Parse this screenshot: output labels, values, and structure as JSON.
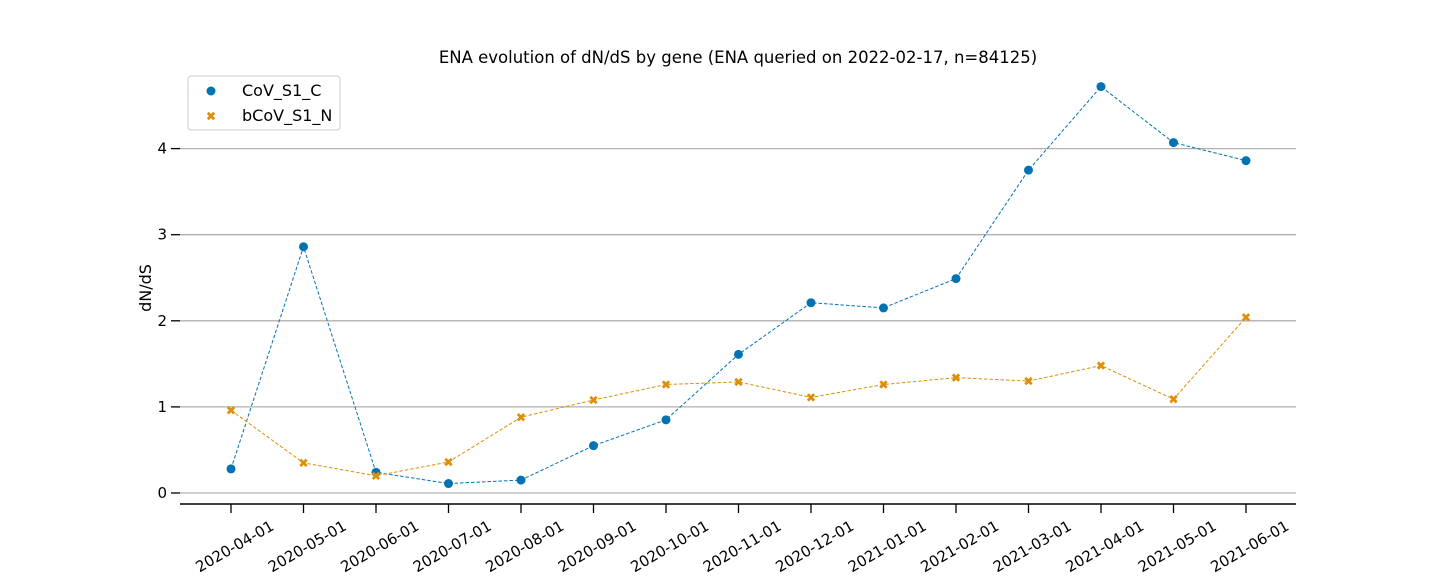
{
  "chart_data": {
    "type": "scatter",
    "title": "ENA evolution of dN/dS by gene (ENA queried on 2022-02-17, n=84125)",
    "xlabel": "",
    "ylabel": "dN/dS",
    "x": [
      "2020-04-01",
      "2020-05-01",
      "2020-06-01",
      "2020-07-01",
      "2020-08-01",
      "2020-09-01",
      "2020-10-01",
      "2020-11-01",
      "2020-12-01",
      "2021-01-01",
      "2021-02-01",
      "2021-03-01",
      "2021-04-01",
      "2021-05-01",
      "2021-06-01"
    ],
    "y_ticks": [
      0,
      1,
      2,
      3,
      4
    ],
    "ylim": [
      -0.13,
      4.85
    ],
    "grid": "horizontal",
    "legend_position": "top-left",
    "series": [
      {
        "name": "CoV_S1_C",
        "marker": "circle",
        "color": "#0173b2",
        "line_style": "dashed",
        "values": [
          0.28,
          2.86,
          0.24,
          0.11,
          0.15,
          0.55,
          0.85,
          1.61,
          2.21,
          2.15,
          2.49,
          3.75,
          4.72,
          4.07,
          3.86
        ]
      },
      {
        "name": "bCoV_S1_N",
        "marker": "x",
        "color": "#de8f05",
        "line_style": "dashed",
        "values": [
          0.96,
          0.35,
          0.2,
          0.36,
          0.88,
          1.08,
          1.26,
          1.29,
          1.11,
          1.26,
          1.34,
          1.3,
          1.48,
          1.09,
          2.04
        ]
      }
    ]
  }
}
